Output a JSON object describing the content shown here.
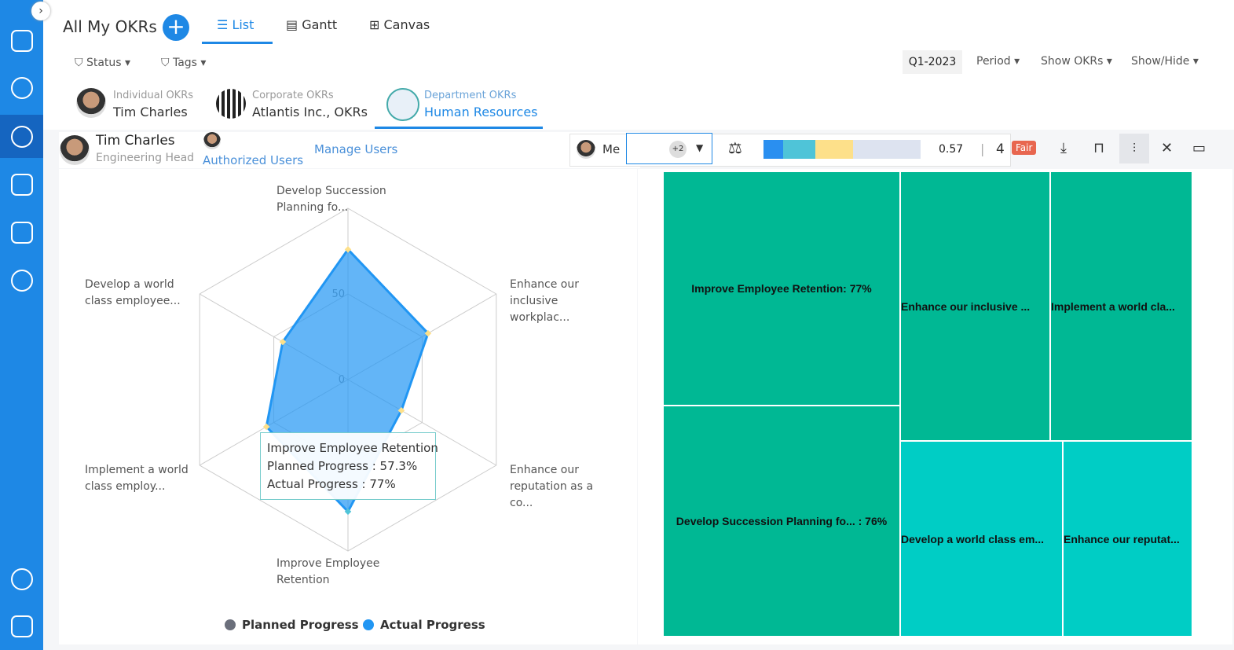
{
  "header": {
    "title": "All My OKRs",
    "views": [
      "List",
      "Gantt",
      "Canvas"
    ]
  },
  "filters": [
    "Status",
    "Tags"
  ],
  "period": {
    "quarter": "Q1-2023",
    "menus": [
      "Period",
      "Show OKRs",
      "Show/Hide"
    ]
  },
  "okr_tabs": [
    {
      "kind": "Individual OKRs",
      "name": "Tim Charles"
    },
    {
      "kind": "Corporate OKRs",
      "name": "Atlantis Inc., OKRs"
    },
    {
      "kind": "Department OKRs",
      "name": "Human Resources"
    }
  ],
  "user": {
    "name": "Tim Charles",
    "role": "Engineering Head",
    "authorized": "Authorized Users",
    "manage": "Manage Users",
    "me": "Me",
    "extra": "+2"
  },
  "score": {
    "value": "0.57",
    "count": "4",
    "rating": "Fair"
  },
  "radar": {
    "type": "radar",
    "axes": [
      "Develop Succession\nPlanning fo...",
      "Enhance our\ninclusive\nworkplac...",
      "Enhance our\nreputation as a\nco...",
      "Improve Employee\nRetention",
      "Implement a world\nclass employ...",
      "Develop a world\nclass employee..."
    ],
    "rlim": [
      0,
      100
    ],
    "rticks": [
      0,
      50
    ],
    "series": [
      {
        "name": "Planned Progress",
        "color": "#6b6f7b"
      },
      {
        "name": "Actual Progress",
        "color": "#2196f3",
        "values": [
          76,
          54,
          36,
          77,
          55,
          44
        ]
      }
    ],
    "tooltip": {
      "title": "Improve Employee Retention",
      "lines": [
        "Planned Progress : 57.3%",
        "Actual Progress : 77%"
      ]
    }
  },
  "treemap": {
    "nodes": [
      "Improve Employee Retention: 77%",
      "Develop Succession Planning fo... : 76%",
      "Enhance our inclusive ...",
      "Implement a world cla...",
      "Develop a world class em...",
      "Enhance our reputat..."
    ]
  }
}
